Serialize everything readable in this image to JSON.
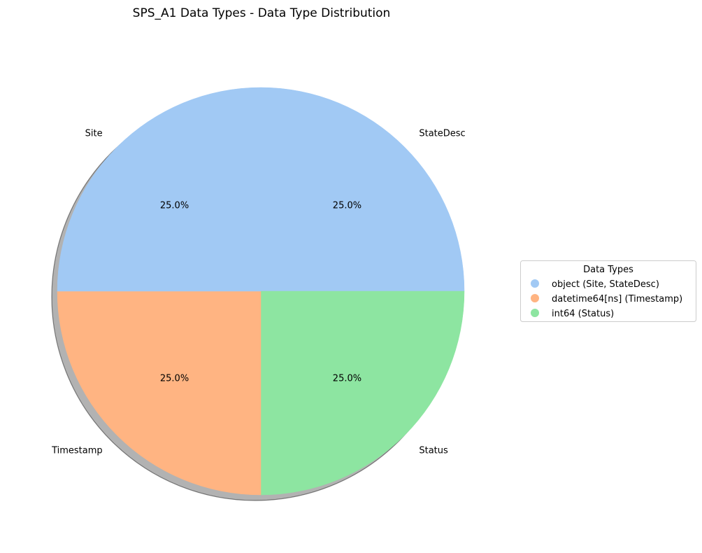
{
  "chart_data": {
    "type": "pie",
    "title": "SPS_A1 Data Types - Data Type Distribution",
    "slices": [
      {
        "label": "StateDesc",
        "value": 25.0,
        "pct_label": "25.0%",
        "color": "#a1c9f4"
      },
      {
        "label": "Status",
        "value": 25.0,
        "pct_label": "25.0%",
        "color": "#8de5a1"
      },
      {
        "label": "Timestamp",
        "value": 25.0,
        "pct_label": "25.0%",
        "color": "#ffb482"
      },
      {
        "label": "Site",
        "value": 25.0,
        "pct_label": "25.0%",
        "color": "#a1c9f4"
      }
    ],
    "shadow": true,
    "legend": {
      "title": "Data Types",
      "placement": "right",
      "entries": [
        {
          "label": "object (Site, StateDesc)",
          "color": "#a1c9f4"
        },
        {
          "label": "datetime64[ns] (Timestamp)",
          "color": "#ffb482"
        },
        {
          "label": "int64 (Status)",
          "color": "#8de5a1"
        }
      ]
    }
  }
}
